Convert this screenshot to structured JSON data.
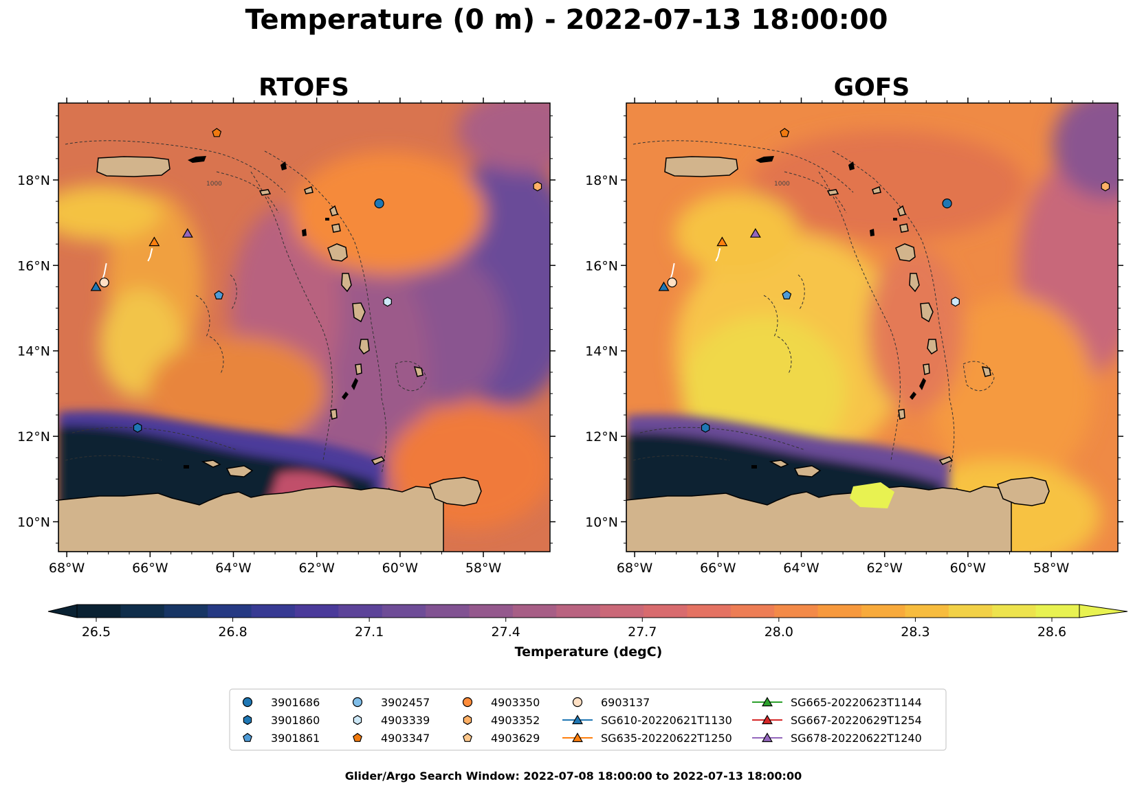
{
  "figure_title": "Temperature (0 m) - 2022-07-13 18:00:00",
  "panels": [
    {
      "title": "RTOFS"
    },
    {
      "title": "GOFS"
    }
  ],
  "axes": {
    "x_ticks": [
      "68°W",
      "66°W",
      "64°W",
      "62°W",
      "60°W",
      "58°W"
    ],
    "y_ticks": [
      "18°N",
      "16°N",
      "14°N",
      "12°N",
      "10°N"
    ],
    "lon_range": [
      -68.2,
      -56.4
    ],
    "lat_range": [
      9.3,
      19.8
    ]
  },
  "colorbar": {
    "label": "Temperature (degC)",
    "ticks": [
      "26.5",
      "26.8",
      "27.1",
      "27.4",
      "27.7",
      "28.0",
      "28.3",
      "28.6"
    ],
    "min": 26.5,
    "max": 28.6,
    "extend": "both",
    "colormap": "thermal",
    "stops": [
      "#0a2233",
      "#12345a",
      "#2b3a8f",
      "#4b3a9a",
      "#6a4b98",
      "#8a5590",
      "#aa5f85",
      "#c8677a",
      "#e06d68",
      "#ef7f52",
      "#f7983d",
      "#f9b43a",
      "#f0d84a",
      "#e8f251"
    ]
  },
  "isobath_labels": [
    "1000"
  ],
  "legend": {
    "items": [
      {
        "label": "3901686",
        "marker": "circle",
        "color": "#1f77b4"
      },
      {
        "label": "3901860",
        "marker": "hexagon",
        "color": "#1f77b4"
      },
      {
        "label": "3901861",
        "marker": "pentagon",
        "color": "#4f9bd6"
      },
      {
        "label": "3902457",
        "marker": "circle",
        "color": "#7fbde8"
      },
      {
        "label": "4903339",
        "marker": "hexagon",
        "color": "#cde8f7"
      },
      {
        "label": "4903347",
        "marker": "pentagon",
        "color": "#f07a10"
      },
      {
        "label": "4903350",
        "marker": "circle",
        "color": "#ff8c3a"
      },
      {
        "label": "4903352",
        "marker": "hexagon",
        "color": "#ffb066"
      },
      {
        "label": "4903629",
        "marker": "pentagon",
        "color": "#ffc88c"
      },
      {
        "label": "6903137",
        "marker": "circle",
        "color": "#ffe0c4"
      },
      {
        "label": "SG610-20220621T1130",
        "marker": "triangle-line",
        "color": "#1f77b4"
      },
      {
        "label": "SG635-20220622T1250",
        "marker": "triangle-line",
        "color": "#ff7f0e"
      },
      {
        "label": "SG665-20220623T1144",
        "marker": "triangle-line",
        "color": "#2ca02c"
      },
      {
        "label": "SG667-20220629T1254",
        "marker": "triangle-line",
        "color": "#d62728"
      },
      {
        "label": "SG678-20220622T1240",
        "marker": "triangle-line",
        "color": "#9467bd"
      }
    ]
  },
  "platforms": [
    {
      "id": "3901686",
      "lon": -60.5,
      "lat": 17.45
    },
    {
      "id": "3901860",
      "lon": -66.3,
      "lat": 12.2
    },
    {
      "id": "3901861",
      "lon": -64.35,
      "lat": 15.3
    },
    {
      "id": "4903339",
      "lon": -60.3,
      "lat": 15.15
    },
    {
      "id": "4903347",
      "lon": -64.4,
      "lat": 19.1
    },
    {
      "id": "4903352",
      "lon": -56.7,
      "lat": 17.85
    },
    {
      "id": "6903137",
      "lon": -67.1,
      "lat": 15.6
    },
    {
      "id": "SG610-20220621T1130",
      "lon": -67.3,
      "lat": 15.5
    },
    {
      "id": "SG635-20220622T1250",
      "lon": -65.9,
      "lat": 16.55
    },
    {
      "id": "SG678-20220622T1240",
      "lon": -65.1,
      "lat": 16.75
    }
  ],
  "footer": "Glider/Argo Search Window: 2022-07-08 18:00:00 to 2022-07-13 18:00:00"
}
